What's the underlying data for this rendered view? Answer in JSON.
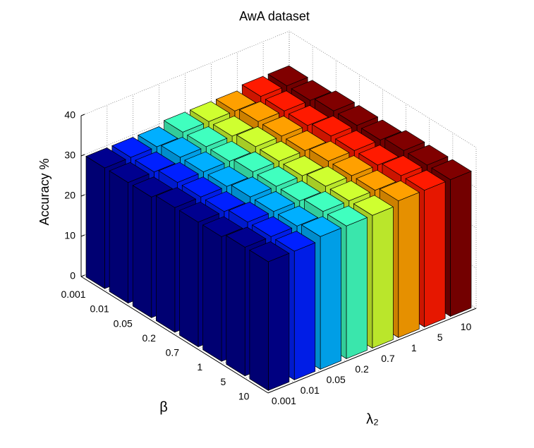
{
  "chart_data": {
    "type": "bar3d",
    "title": "AwA dataset",
    "zlabel": "Accuracy %",
    "beta_label": "β",
    "lambda_label": "λ₂",
    "beta_categories": [
      "0.001",
      "0.01",
      "0.05",
      "0.2",
      "0.7",
      "1",
      "5",
      "10"
    ],
    "lambda_categories": [
      "0.001",
      "0.01",
      "0.05",
      "0.2",
      "0.7",
      "1",
      "5",
      "10"
    ],
    "colors": [
      "#00008f",
      "#0020ff",
      "#00afff",
      "#40ffbf",
      "#cfff30",
      "#ffa000",
      "#ff1a00",
      "#800000"
    ],
    "values": [
      [
        30,
        30,
        30,
        31,
        31,
        31,
        32,
        32
      ],
      [
        30,
        30,
        31,
        31,
        31,
        32,
        32,
        32
      ],
      [
        30,
        31,
        31,
        31,
        32,
        32,
        32,
        33
      ],
      [
        31,
        31,
        31,
        32,
        32,
        32,
        33,
        33
      ],
      [
        31,
        31,
        32,
        32,
        32,
        33,
        33,
        33
      ],
      [
        31,
        32,
        32,
        32,
        33,
        33,
        33,
        34
      ],
      [
        32,
        32,
        32,
        33,
        33,
        33,
        34,
        34
      ],
      [
        32,
        32,
        33,
        33,
        33,
        34,
        34,
        34
      ]
    ],
    "zlim": [
      0,
      40
    ],
    "zticks": [
      0,
      10,
      20,
      30,
      40
    ],
    "grid": true
  }
}
